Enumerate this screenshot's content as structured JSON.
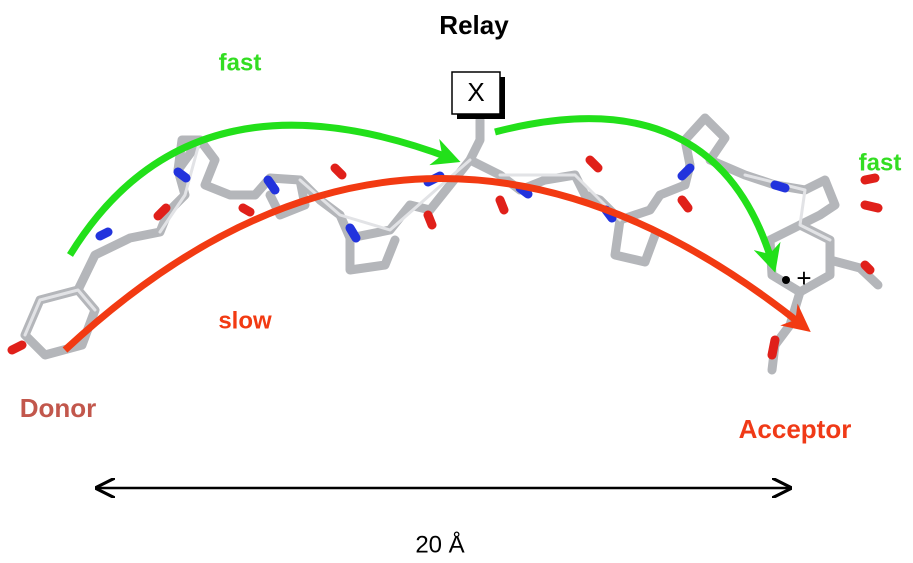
{
  "title": "Relay",
  "relay_label": "X",
  "paths": [
    {
      "label": "fast"
    },
    {
      "label": "fast"
    },
    {
      "label": "slow"
    }
  ],
  "donor": "Donor",
  "acceptor": "Acceptor",
  "acceptor_mark": "+",
  "distance": "20 Å"
}
